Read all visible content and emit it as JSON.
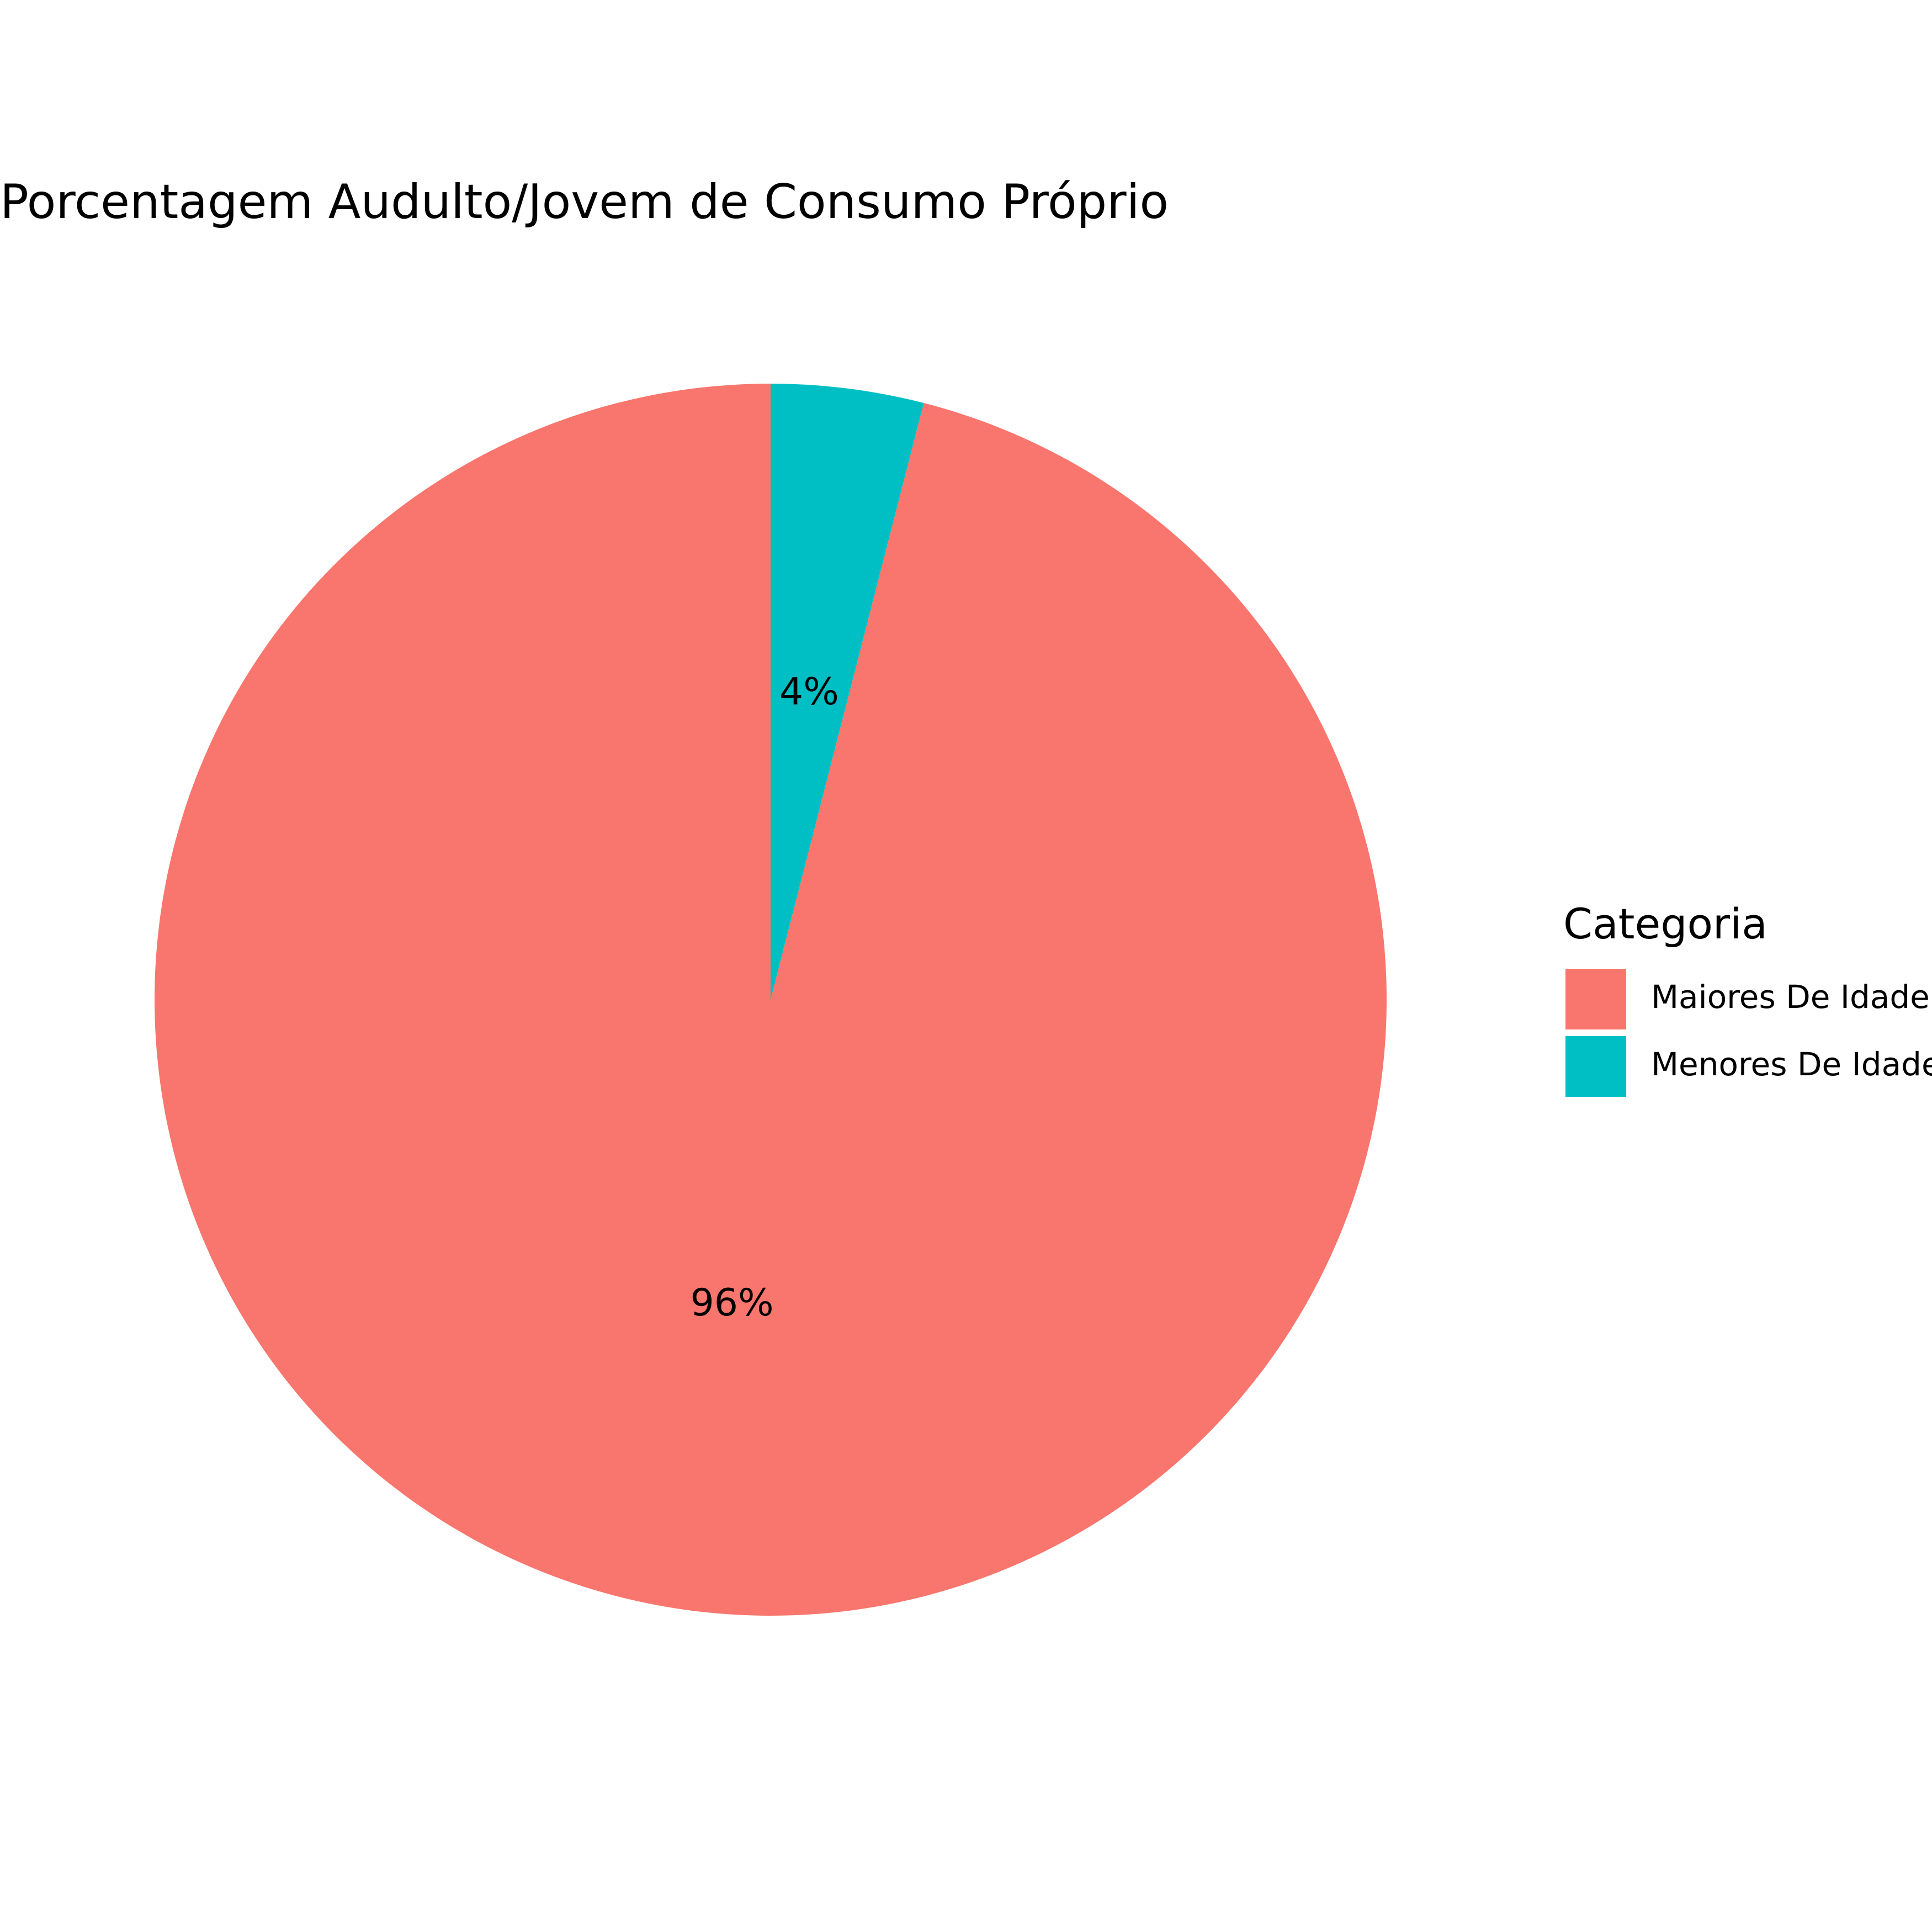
{
  "chart_data": {
    "type": "pie",
    "title": "Porcentagem Audulto/Jovem de Consumo Próprio",
    "legend": {
      "title": "Categoria",
      "placement": "right"
    },
    "slices": [
      {
        "label": "Maiores De Idade",
        "value": 96,
        "display": "96%",
        "color": "#F8766D"
      },
      {
        "label": "Menores De Idade",
        "value": 4,
        "display": "4%",
        "color": "#00BFC4"
      }
    ]
  }
}
